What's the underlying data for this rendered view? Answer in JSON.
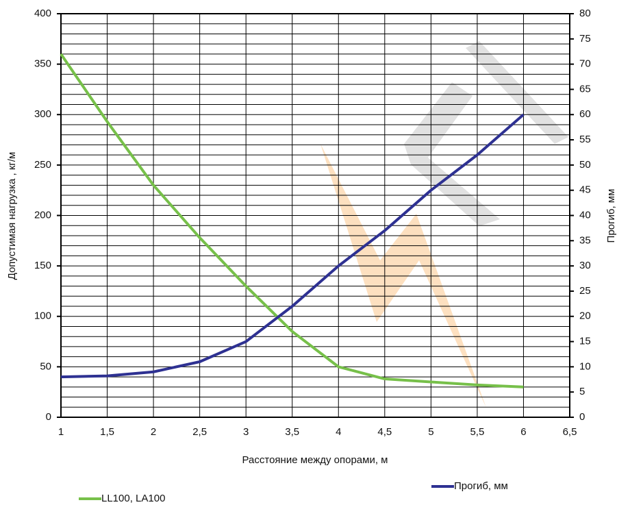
{
  "chart_data": {
    "type": "line",
    "x_label": "Расстояние между опорами, м",
    "y_label": "Допустимая нагрузка , кг/м",
    "y2_label": "Прогиб, мм",
    "x": [
      1,
      1.5,
      2,
      2.5,
      3,
      3.5,
      4,
      4.5,
      5,
      5.5,
      6
    ],
    "series": [
      {
        "name": "LL100, LA100",
        "color": "#77c04a",
        "values": [
          360,
          293,
          230,
          178,
          130,
          85,
          50,
          38,
          35,
          32,
          30
        ]
      },
      {
        "name": "Прогиб, мм",
        "color": "#2e3192",
        "axis": "y2",
        "values": [
          8,
          8.2,
          9,
          11,
          15,
          22,
          30,
          37,
          45,
          52,
          60
        ]
      }
    ],
    "xlim": [
      1,
      6.5
    ],
    "xticks": [
      1,
      {
        "value": 1.5,
        "label": "1,5"
      },
      2,
      {
        "value": 2.5,
        "label": "2,5"
      },
      3,
      {
        "value": 3.5,
        "label": "3,5"
      },
      4,
      {
        "value": 4.5,
        "label": "4,5"
      },
      5,
      {
        "value": 5.5,
        "label": "5,5"
      },
      6,
      {
        "value": 6.5,
        "label": "6,5"
      }
    ],
    "ylim": [
      0,
      400
    ],
    "yticks": [
      0,
      50,
      100,
      150,
      200,
      250,
      300,
      350,
      400
    ],
    "ygrid": [
      0,
      10,
      20,
      30,
      40,
      50,
      60,
      70,
      80,
      90,
      100,
      110,
      120,
      130,
      140,
      150,
      160,
      170,
      180,
      190,
      200,
      210,
      220,
      230,
      240,
      250,
      260,
      270,
      280,
      290,
      300,
      310,
      320,
      330,
      340,
      350,
      360,
      370,
      380,
      390,
      400
    ],
    "y2lim": [
      0,
      80
    ],
    "y2ticks": [
      0,
      5,
      10,
      15,
      20,
      25,
      30,
      35,
      40,
      45,
      50,
      55,
      60,
      65,
      70,
      75,
      80
    ],
    "grid": true
  }
}
